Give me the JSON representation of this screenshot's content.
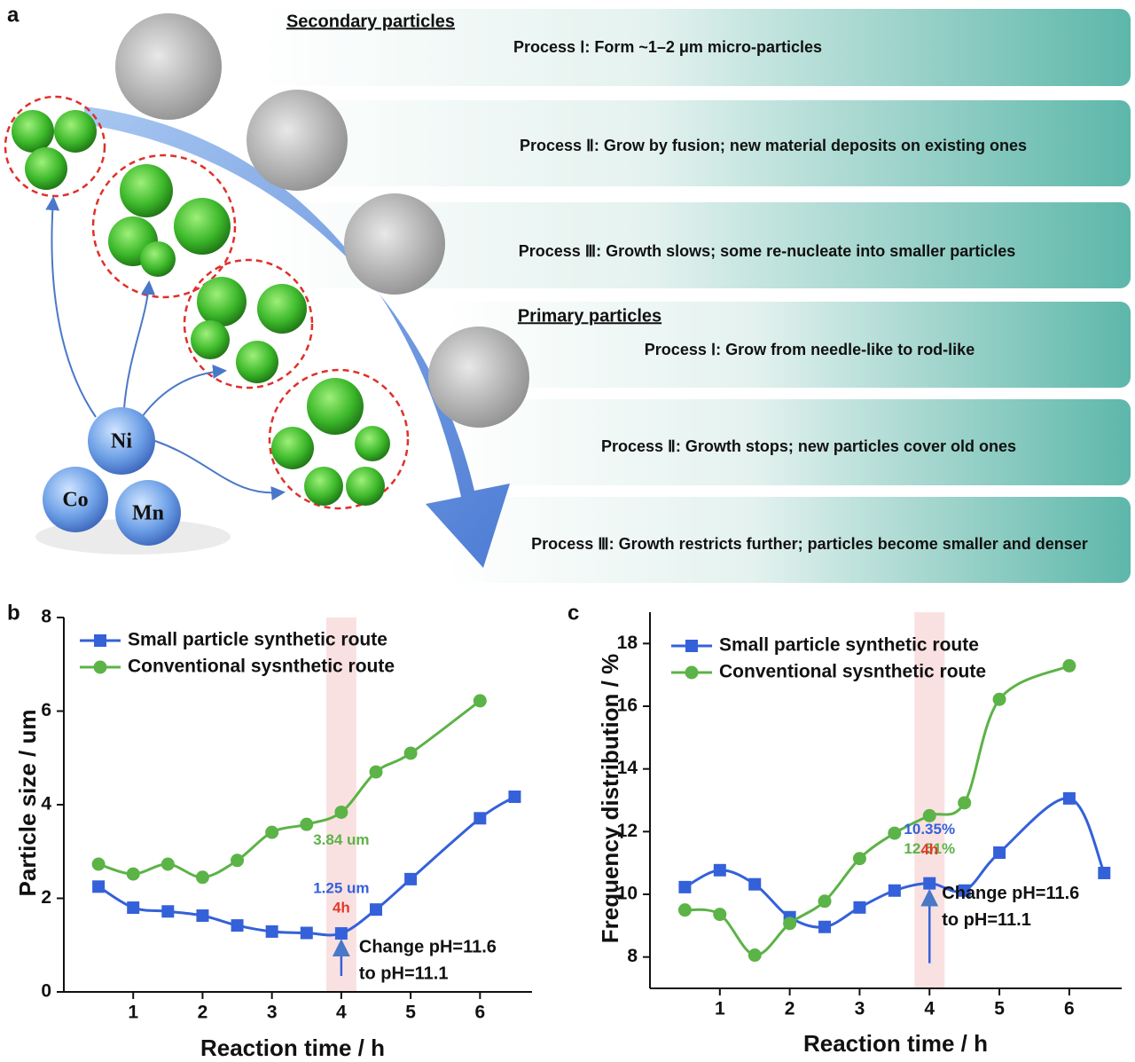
{
  "diagram": {
    "panel_label": "a",
    "secondary_title": "Secondary particles",
    "primary_title": "Primary particles",
    "processes": [
      "Process Ⅰ: Form ~1–2 μm micro-particles",
      "Process Ⅱ: Grow by fusion; new material deposits on existing ones",
      "Process Ⅲ: Growth slows; some re-nucleate into smaller particles",
      "Process Ⅰ: Grow from needle-like to rod-like",
      "Process Ⅱ: Growth stops; new particles cover old ones",
      "Process Ⅲ: Growth restricts further; particles become smaller and denser"
    ],
    "elements": [
      "Ni",
      "Co",
      "Mn"
    ]
  },
  "chart_data": [
    {
      "type": "line",
      "panel_label": "b",
      "xlabel": "Reaction time / h",
      "ylabel": "Particle size / um",
      "xlim": [
        0,
        6.75
      ],
      "xticks": [
        1,
        2,
        3,
        4,
        5,
        6
      ],
      "ylim": [
        0,
        8
      ],
      "yticks": [
        0,
        2,
        4,
        6,
        8
      ],
      "legend": "upper left",
      "series": [
        {
          "name": "Small particle synthetic route",
          "color": "#3461d9",
          "marker": "square",
          "x": [
            0.5,
            1,
            1.5,
            2,
            2.5,
            3,
            3.5,
            4,
            4.5,
            5,
            6,
            6.5
          ],
          "values": [
            2.25,
            1.8,
            1.72,
            1.63,
            1.42,
            1.29,
            1.26,
            1.25,
            1.76,
            2.41,
            3.71,
            4.17
          ]
        },
        {
          "name": "Conventional sysnthetic route",
          "color": "#5cb347",
          "marker": "circle",
          "x": [
            0.5,
            1,
            1.5,
            2,
            2.5,
            3,
            3.5,
            4,
            4.5,
            5,
            6
          ],
          "values": [
            2.73,
            2.52,
            2.73,
            2.45,
            2.81,
            3.41,
            3.58,
            3.84,
            4.7,
            5.1,
            6.22
          ]
        }
      ],
      "annotations": [
        "3.84 um",
        "1.25 um",
        "4h",
        "Change pH=11.6",
        "to pH=11.1"
      ]
    },
    {
      "type": "line",
      "panel_label": "c",
      "xlabel": "Reaction time / h",
      "ylabel": "Frequency distribution / %",
      "xlim": [
        0,
        6.75
      ],
      "xticks": [
        1,
        2,
        3,
        4,
        5,
        6
      ],
      "ylim": [
        7,
        19
      ],
      "yticks": [
        8,
        10,
        12,
        14,
        16,
        18
      ],
      "legend": "upper left",
      "series": [
        {
          "name": "Small particle synthetic route",
          "color": "#3461d9",
          "marker": "square",
          "x": [
            0.5,
            1,
            1.5,
            2,
            2.5,
            3,
            3.5,
            4,
            4.5,
            5,
            6,
            6.5
          ],
          "values": [
            10.23,
            10.77,
            10.32,
            9.27,
            8.96,
            9.58,
            10.12,
            10.35,
            10.12,
            11.33,
            13.06,
            10.68
          ]
        },
        {
          "name": "Conventional sysnthetic route",
          "color": "#5cb347",
          "marker": "circle",
          "x": [
            0.5,
            1,
            1.5,
            2,
            2.5,
            3,
            3.5,
            4,
            4.5,
            5,
            6
          ],
          "values": [
            9.5,
            9.36,
            8.06,
            9.07,
            9.78,
            11.14,
            11.95,
            12.51,
            12.92,
            16.22,
            17.29
          ]
        }
      ],
      "annotations": [
        "12.51%",
        "10.35%",
        "4h",
        "Change pH=11.6",
        "to pH=11.1"
      ]
    }
  ]
}
